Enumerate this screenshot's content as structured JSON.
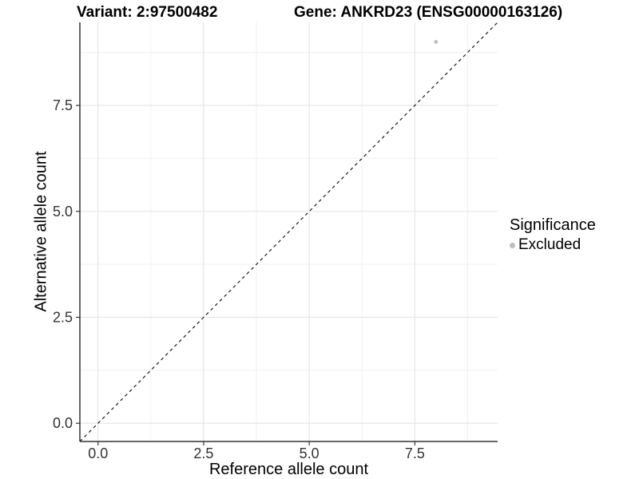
{
  "titles": {
    "variant": "Variant: 2:97500482",
    "gene": "Gene: ANKRD23 (ENSG00000163126)"
  },
  "chart_data": {
    "type": "scatter",
    "xlabel": "Reference allele count",
    "ylabel": "Alternative allele count",
    "xlim": [
      -0.43,
      9.46
    ],
    "ylim": [
      -0.43,
      9.46
    ],
    "x_ticks": {
      "values": [
        0,
        2.5,
        5.0,
        7.5
      ],
      "labels": [
        "0.0",
        "2.5",
        "5.0",
        "7.5"
      ]
    },
    "y_ticks": {
      "values": [
        0,
        2.5,
        5.0,
        7.5
      ],
      "labels": [
        "0.0",
        "2.5",
        "5.0",
        "7.5"
      ]
    },
    "minor_ticks": [
      1.25,
      3.75,
      6.25,
      8.75
    ],
    "grid": "major-and-minor, light grey on white",
    "points": [
      {
        "x": 8,
        "y": 9,
        "series": "Excluded"
      }
    ],
    "identity_line": {
      "slope": 1,
      "intercept": 0,
      "style": "dashed"
    },
    "legend": {
      "title": "Significance",
      "position": "right",
      "items": [
        {
          "label": "Excluded",
          "color": "#bebebe"
        }
      ]
    },
    "colors": {
      "point": "#bebebe",
      "grid_major": "#e4e4e4",
      "grid_minor": "#f0f0f0",
      "axis_line": "#333333",
      "tick_text": "#333333",
      "dashed_line": "#1a1a1a"
    }
  }
}
